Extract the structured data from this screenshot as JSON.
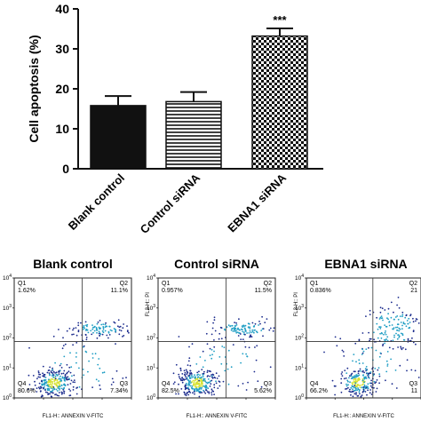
{
  "chart_data": [
    {
      "type": "bar",
      "ylabel": "Cell apoptosis (%)",
      "ylim": [
        0,
        40
      ],
      "yticks": [
        0,
        10,
        20,
        30,
        40
      ],
      "categories": [
        "Blank control",
        "Control siRNA",
        "EBNA1 siRNA"
      ],
      "values": [
        15.8,
        16.8,
        33.2
      ],
      "errors": [
        2.4,
        2.4,
        1.9
      ],
      "patterns": [
        "solid",
        "horizontal-lines",
        "checkerboard"
      ],
      "annotations": [
        "",
        "",
        "***"
      ],
      "grid": false
    },
    {
      "type": "scatter",
      "title": "Blank control",
      "xlabel": "FL1-H:: ANNEXIN V-FITC",
      "ylabel": "",
      "quadrants": [
        {
          "name": "Q1",
          "value": "1.62%"
        },
        {
          "name": "Q2",
          "value": "11.1%"
        },
        {
          "name": "Q3",
          "value": "7.34%"
        },
        {
          "name": "Q4",
          "value": "80.6%"
        }
      ]
    },
    {
      "type": "scatter",
      "title": "Control siRNA",
      "xlabel": "FL1-H:: ANNEXIN V-FITC",
      "ylabel": "FL3-H:: PI",
      "quadrants": [
        {
          "name": "Q1",
          "value": "0.957%"
        },
        {
          "name": "Q2",
          "value": "11.5%"
        },
        {
          "name": "Q3",
          "value": "5.62%"
        },
        {
          "name": "Q4",
          "value": "82.5%"
        }
      ]
    },
    {
      "type": "scatter",
      "title": "EBNA1 siRNA",
      "xlabel": "FL1-H:: ANNEXIN V-FITC",
      "ylabel": "FL3-H:: PI",
      "quadrants": [
        {
          "name": "Q1",
          "value": "0.836%"
        },
        {
          "name": "Q2",
          "value": "21"
        },
        {
          "name": "Q3",
          "value": "11"
        },
        {
          "name": "Q4",
          "value": "66.2%"
        }
      ]
    }
  ],
  "log_axis": {
    "base": "10",
    "exponents": [
      "0",
      "1",
      "2",
      "3",
      "4"
    ]
  },
  "colors": {
    "bar_dark": "#111111",
    "dot_low": "#1a2a8c",
    "dot_mid": "#1f9ec4",
    "dot_high": "#d7e233"
  }
}
